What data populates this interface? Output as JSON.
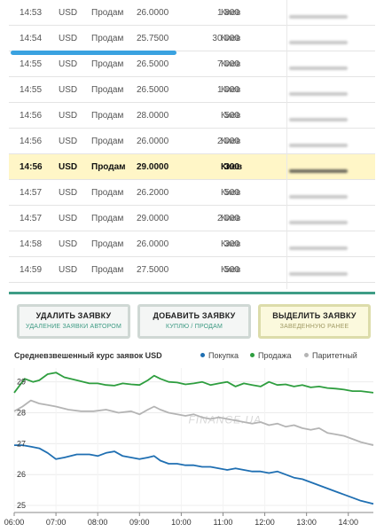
{
  "table": {
    "rows": [
      {
        "time": "14:53",
        "currency": "USD",
        "action": "Продам",
        "rate": "26.0000",
        "amount": "1 800",
        "city": "Киев",
        "highlight": false
      },
      {
        "time": "14:54",
        "currency": "USD",
        "action": "Продам",
        "rate": "25.7500",
        "amount": "30 000",
        "city": "Киев",
        "highlight": false
      },
      {
        "time": "14:55",
        "currency": "USD",
        "action": "Продам",
        "rate": "26.5000",
        "amount": "7 000",
        "city": "Киев",
        "highlight": false
      },
      {
        "time": "14:55",
        "currency": "USD",
        "action": "Продам",
        "rate": "26.5000",
        "amount": "1 000",
        "city": "Киев",
        "highlight": false
      },
      {
        "time": "14:56",
        "currency": "USD",
        "action": "Продам",
        "rate": "28.0000",
        "amount": "500",
        "city": "Киев",
        "highlight": false
      },
      {
        "time": "14:56",
        "currency": "USD",
        "action": "Продам",
        "rate": "26.0000",
        "amount": "2 000",
        "city": "Киев",
        "highlight": false
      },
      {
        "time": "14:56",
        "currency": "USD",
        "action": "Продам",
        "rate": "29.0000",
        "amount": "300",
        "city": "Киев",
        "highlight": true
      },
      {
        "time": "14:57",
        "currency": "USD",
        "action": "Продам",
        "rate": "26.2000",
        "amount": "500",
        "city": "Киев",
        "highlight": false
      },
      {
        "time": "14:57",
        "currency": "USD",
        "action": "Продам",
        "rate": "29.0000",
        "amount": "2 000",
        "city": "Киев",
        "highlight": false
      },
      {
        "time": "14:58",
        "currency": "USD",
        "action": "Продам",
        "rate": "26.0000",
        "amount": "300",
        "city": "Киев",
        "highlight": false
      },
      {
        "time": "14:59",
        "currency": "USD",
        "action": "Продам",
        "rate": "27.5000",
        "amount": "500",
        "city": "Киев",
        "highlight": false
      }
    ]
  },
  "buttons": {
    "delete": {
      "title": "УДАЛИТЬ ЗАЯВКУ",
      "subtitle": "УДАЛЕНИЕ ЗАЯВКИ АВТОРОМ"
    },
    "add": {
      "title": "ДОБАВИТЬ ЗАЯВКУ",
      "subtitle": "КУПЛЮ / ПРОДАМ"
    },
    "highlight": {
      "title": "ВЫДЕЛИТЬ ЗАЯВКУ",
      "subtitle": "ЗАВЕДЕННУЮ РАНЕЕ"
    }
  },
  "chart": {
    "title": "Средневзвешенный курс заявок USD",
    "watermark": "FINANCE.UA"
  },
  "colors": {
    "buy": "#1f6fb2",
    "sell": "#2e9e3f",
    "parity": "#b4b4b4",
    "accent": "#3f9d86",
    "highlight_row": "#fff6c7"
  },
  "chart_data": {
    "type": "line",
    "title": "Средневзвешенный курс заявок USD",
    "xlabel": "",
    "ylabel": "",
    "x_ticks": [
      "06:00",
      "07:00",
      "08:00",
      "09:00",
      "10:00",
      "11:00",
      "12:00",
      "13:00",
      "14:00"
    ],
    "y_ticks": [
      25,
      26,
      27,
      28,
      29
    ],
    "xlim": [
      6.0,
      14.6
    ],
    "ylim": [
      24.8,
      29.45
    ],
    "legend": [
      "Покупка",
      "Продажа",
      "Паритетный"
    ],
    "legend_position": "top-right",
    "grid": true,
    "series": [
      {
        "name": "Продажа",
        "color": "#2e9e3f",
        "x": [
          6.0,
          6.25,
          6.45,
          6.6,
          6.8,
          7.0,
          7.2,
          7.5,
          7.8,
          8.0,
          8.2,
          8.4,
          8.6,
          8.8,
          9.0,
          9.2,
          9.35,
          9.5,
          9.7,
          9.9,
          10.1,
          10.3,
          10.5,
          10.7,
          10.9,
          11.1,
          11.3,
          11.5,
          11.7,
          11.9,
          12.1,
          12.3,
          12.5,
          12.7,
          12.9,
          13.1,
          13.3,
          13.5,
          13.7,
          13.9,
          14.1,
          14.3,
          14.6
        ],
        "y": [
          28.65,
          29.1,
          29.0,
          29.05,
          29.25,
          29.3,
          29.15,
          29.05,
          28.95,
          28.95,
          28.9,
          28.88,
          28.95,
          28.92,
          28.9,
          29.05,
          29.2,
          29.1,
          29.0,
          28.98,
          28.92,
          28.95,
          29.0,
          28.9,
          28.95,
          29.0,
          28.85,
          28.95,
          28.9,
          28.85,
          29.0,
          28.9,
          28.92,
          28.85,
          28.9,
          28.82,
          28.85,
          28.8,
          28.78,
          28.75,
          28.7,
          28.7,
          28.65
        ]
      },
      {
        "name": "Паритетный",
        "color": "#b4b4b4",
        "x": [
          6.0,
          6.2,
          6.4,
          6.6,
          6.8,
          7.0,
          7.3,
          7.6,
          7.9,
          8.2,
          8.5,
          8.8,
          9.0,
          9.2,
          9.35,
          9.5,
          9.7,
          9.9,
          10.1,
          10.3,
          10.5,
          10.7,
          10.9,
          11.1,
          11.3,
          11.5,
          11.7,
          11.9,
          12.1,
          12.3,
          12.5,
          12.7,
          12.9,
          13.1,
          13.3,
          13.5,
          13.7,
          13.9,
          14.1,
          14.3,
          14.6
        ],
        "y": [
          28.05,
          28.2,
          28.4,
          28.3,
          28.25,
          28.2,
          28.1,
          28.05,
          28.05,
          28.1,
          28.0,
          28.05,
          27.95,
          28.1,
          28.2,
          28.1,
          28.0,
          27.95,
          27.9,
          27.95,
          27.85,
          27.8,
          27.85,
          27.8,
          27.75,
          27.7,
          27.65,
          27.7,
          27.6,
          27.65,
          27.55,
          27.6,
          27.5,
          27.45,
          27.5,
          27.35,
          27.3,
          27.25,
          27.15,
          27.05,
          26.95
        ]
      },
      {
        "name": "Покупка",
        "color": "#1f6fb2",
        "x": [
          6.0,
          6.2,
          6.4,
          6.6,
          6.8,
          7.0,
          7.2,
          7.5,
          7.8,
          8.0,
          8.2,
          8.4,
          8.6,
          8.8,
          9.0,
          9.2,
          9.35,
          9.5,
          9.7,
          9.9,
          10.1,
          10.3,
          10.5,
          10.7,
          10.9,
          11.1,
          11.3,
          11.5,
          11.7,
          11.9,
          12.1,
          12.3,
          12.5,
          12.7,
          12.9,
          13.1,
          13.3,
          13.5,
          13.7,
          13.9,
          14.1,
          14.3,
          14.6
        ],
        "y": [
          26.95,
          26.95,
          26.9,
          26.85,
          26.7,
          26.5,
          26.55,
          26.65,
          26.65,
          26.6,
          26.7,
          26.75,
          26.6,
          26.55,
          26.5,
          26.55,
          26.6,
          26.45,
          26.35,
          26.35,
          26.3,
          26.3,
          26.25,
          26.25,
          26.2,
          26.15,
          26.2,
          26.15,
          26.1,
          26.1,
          26.05,
          26.1,
          26.0,
          25.9,
          25.85,
          25.75,
          25.65,
          25.55,
          25.45,
          25.35,
          25.25,
          25.15,
          25.05
        ]
      }
    ]
  }
}
